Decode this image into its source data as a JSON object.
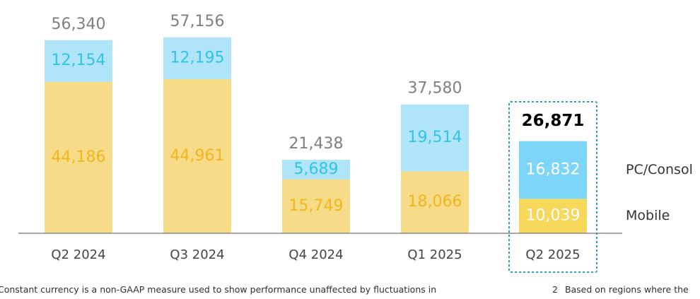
{
  "chart_data": {
    "type": "bar",
    "stacked": true,
    "categories": [
      "Q2 2024",
      "Q3 2024",
      "Q4 2024",
      "Q1 2025",
      "Q2 2025"
    ],
    "series": [
      {
        "name": "Mobile",
        "values": [
          44186,
          44961,
          15749,
          18066,
          10039
        ]
      },
      {
        "name": "PC/Consol",
        "values": [
          12154,
          12195,
          5689,
          19514,
          16832
        ]
      }
    ],
    "totals": [
      "56,340",
      "57,156",
      "21,438",
      "37,580",
      "26,871"
    ],
    "segment_labels": {
      "Mobile": [
        "44,186",
        "44,961",
        "15,749",
        "18,066",
        "10,039"
      ],
      "PC/Consol": [
        "12,154",
        "12,195",
        "5,689",
        "19,514",
        "16,832"
      ]
    },
    "highlighted_category": "Q2 2025",
    "ylim": [
      0,
      60000
    ],
    "grid": false,
    "legend_position": "right",
    "colors": {
      "mobile": "#f6dc88",
      "mobile_highlight": "#f8d85a",
      "pc_console": "#b0e4f8",
      "pc_console_highlight": "#7dd6f8",
      "mobile_label": "#f2b51d",
      "pc_label": "#33c3e8",
      "total_label": "#808080",
      "total_label_highlight": "#000000",
      "highlight_box": "#2b9cc3",
      "axis": "#888888",
      "category_label": "#444444"
    }
  },
  "footnotes": {
    "left": "Constant currency is a non-GAAP measure used to show performance unaffected by fluctuations in",
    "right_number": "2",
    "right_text": "Based on regions where the"
  }
}
